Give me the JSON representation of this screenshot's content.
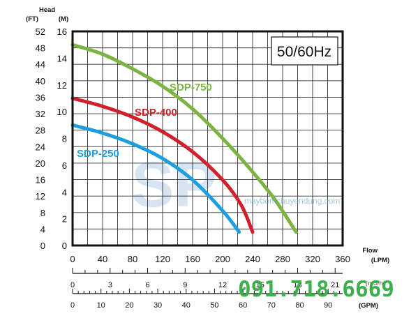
{
  "chart_data": {
    "type": "line",
    "mode_label": "50/60Hz",
    "y_axis_left": {
      "title": "Head",
      "unit_ft": "(FT)",
      "unit_m": "(M)",
      "ft_ticks": [
        "0",
        "4",
        "8",
        "12",
        "16",
        "20",
        "24",
        "28",
        "32",
        "36",
        "40",
        "44",
        "48",
        "52"
      ],
      "m_ticks": [
        "0",
        "2",
        "4",
        "6",
        "8",
        "10",
        "12",
        "14",
        "16"
      ],
      "ylim_m": [
        0,
        16
      ]
    },
    "x_axis": {
      "title": "Flow",
      "lpm_unit": "(LPM)",
      "lpm_ticks": [
        "0",
        "40",
        "80",
        "120",
        "160",
        "200",
        "240",
        "280",
        "320",
        "360"
      ],
      "xlim_lpm": [
        0,
        360
      ],
      "m3h_ticks": [
        "0",
        "3",
        "6",
        "9",
        "12",
        "15",
        "18",
        "21"
      ],
      "m3h_unit": "(m3/h)",
      "gpm_ticks": [
        "0",
        "10",
        "20",
        "30",
        "40",
        "50",
        "60",
        "70",
        "80",
        "90"
      ],
      "gpm_unit": "(GPM)"
    },
    "grid": true,
    "series": [
      {
        "name": "SDP-750",
        "color": "#7cb443",
        "x": [
          0,
          40,
          80,
          120,
          160,
          200,
          240,
          270,
          298
        ],
        "y": [
          15.0,
          14.3,
          13.2,
          11.9,
          10.2,
          8.0,
          5.5,
          3.4,
          1.0
        ]
      },
      {
        "name": "SDP-400",
        "color": "#d0202c",
        "x": [
          0,
          40,
          80,
          120,
          160,
          200,
          225,
          240
        ],
        "y": [
          11.0,
          10.4,
          9.6,
          8.5,
          7.0,
          4.9,
          3.0,
          1.0
        ]
      },
      {
        "name": "SDP-250",
        "color": "#1d9ee0",
        "x": [
          0,
          40,
          80,
          120,
          160,
          200,
          222
        ],
        "y": [
          9.0,
          8.4,
          7.6,
          6.5,
          4.9,
          2.6,
          1.0
        ]
      }
    ]
  },
  "watermark": {
    "phone": "091.718.6669",
    "site": "maybomchuyendung.com",
    "logo_text": "SP"
  }
}
